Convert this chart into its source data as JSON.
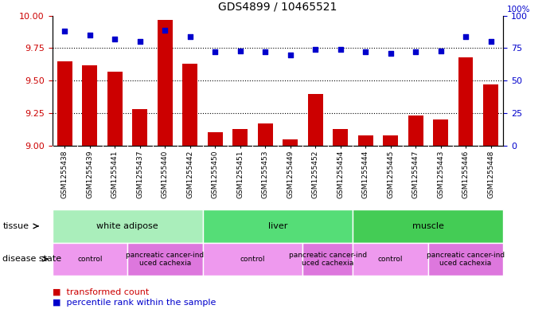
{
  "title": "GDS4899 / 10465521",
  "samples": [
    "GSM1255438",
    "GSM1255439",
    "GSM1255441",
    "GSM1255437",
    "GSM1255440",
    "GSM1255442",
    "GSM1255450",
    "GSM1255451",
    "GSM1255453",
    "GSM1255449",
    "GSM1255452",
    "GSM1255454",
    "GSM1255444",
    "GSM1255445",
    "GSM1255447",
    "GSM1255443",
    "GSM1255446",
    "GSM1255448"
  ],
  "transformed_count": [
    9.65,
    9.62,
    9.57,
    9.28,
    9.97,
    9.63,
    9.1,
    9.13,
    9.17,
    9.05,
    9.4,
    9.13,
    9.08,
    9.08,
    9.23,
    9.2,
    9.68,
    9.47
  ],
  "percentile_rank": [
    88,
    85,
    82,
    80,
    89,
    84,
    72,
    73,
    72,
    70,
    74,
    74,
    72,
    71,
    72,
    73,
    84,
    80
  ],
  "ylim_left": [
    9.0,
    10.0
  ],
  "ylim_right": [
    0,
    100
  ],
  "yticks_left": [
    9.0,
    9.25,
    9.5,
    9.75,
    10.0
  ],
  "yticks_right": [
    0,
    25,
    50,
    75,
    100
  ],
  "bar_color": "#cc0000",
  "dot_color": "#0000cc",
  "tissue_groups": [
    {
      "label": "white adipose",
      "start": 0,
      "end": 5,
      "color": "#aaeebb"
    },
    {
      "label": "liver",
      "start": 6,
      "end": 11,
      "color": "#55dd77"
    },
    {
      "label": "muscle",
      "start": 12,
      "end": 17,
      "color": "#44cc55"
    }
  ],
  "disease_groups": [
    {
      "label": "control",
      "start": 0,
      "end": 2,
      "color": "#ee99ee"
    },
    {
      "label": "pancreatic cancer-ind\nuced cachexia",
      "start": 3,
      "end": 5,
      "color": "#dd77dd"
    },
    {
      "label": "control",
      "start": 6,
      "end": 9,
      "color": "#ee99ee"
    },
    {
      "label": "pancreatic cancer-ind\nuced cachexia",
      "start": 10,
      "end": 11,
      "color": "#dd77dd"
    },
    {
      "label": "control",
      "start": 12,
      "end": 14,
      "color": "#ee99ee"
    },
    {
      "label": "pancreatic cancer-ind\nuced cachexia",
      "start": 15,
      "end": 17,
      "color": "#dd77dd"
    }
  ],
  "bar_width": 0.6,
  "background_color": "#ffffff",
  "ticklabel_bg": "#d8d8d8",
  "axis_color_left": "#cc0000",
  "axis_color_right": "#0000cc",
  "dotted_line_color": "#000000",
  "legend_bar_label": "transformed count",
  "legend_dot_label": "percentile rank within the sample",
  "tissue_label": "tissue",
  "disease_label": "disease state"
}
